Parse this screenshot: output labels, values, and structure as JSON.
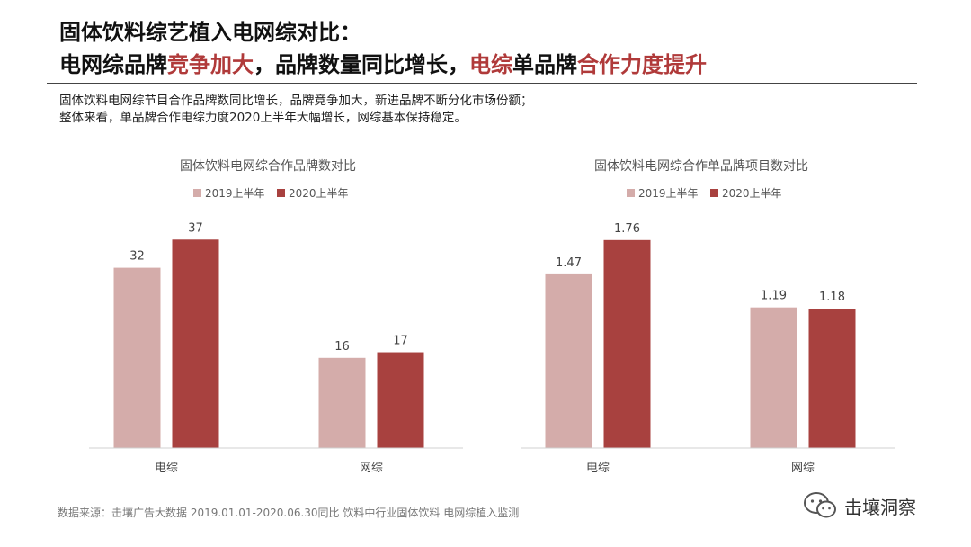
{
  "header": {
    "title_line1": "固体饮料综艺植入电网综对比：",
    "title_line2": [
      {
        "text": "电网综品牌",
        "hl": false
      },
      {
        "text": "竞争加大",
        "hl": true
      },
      {
        "text": "，品牌数量同比增长，",
        "hl": false
      },
      {
        "text": "电综",
        "hl": true
      },
      {
        "text": "单品牌",
        "hl": false
      },
      {
        "text": "合作力度提升",
        "hl": true
      }
    ],
    "desc_line1": "固体饮料电网综节目合作品牌数同比增长，品牌竞争加大，新进品牌不断分化市场份额；",
    "desc_line2": "整体来看，单品牌合作电综力度2020上半年大幅增长，网综基本保持稳定。"
  },
  "colors": {
    "series_2019": "#d4acaa",
    "series_2020": "#a8413f",
    "highlight": "#b03a3a"
  },
  "chart_data": [
    {
      "type": "bar",
      "title": "固体饮料电网综合作品牌数对比",
      "categories": [
        "电综",
        "网综"
      ],
      "series": [
        {
          "name": "2019上半年",
          "values": [
            32,
            16
          ],
          "labels": [
            "32",
            "16"
          ]
        },
        {
          "name": "2020上半年",
          "values": [
            37,
            17
          ],
          "labels": [
            "37",
            "17"
          ]
        }
      ],
      "ylim": [
        0,
        49.5
      ],
      "grid": false,
      "legend": "top-center"
    },
    {
      "type": "bar",
      "title": "固体饮料电网综合作单品牌项目数对比",
      "categories": [
        "电综",
        "网综"
      ],
      "series": [
        {
          "name": "2019上半年",
          "values": [
            1.47,
            1.19
          ],
          "labels": [
            "1.47",
            "1.19"
          ]
        },
        {
          "name": "2020上半年",
          "values": [
            1.76,
            1.18
          ],
          "labels": [
            "1.76",
            "1.18"
          ]
        }
      ],
      "ylim": [
        0,
        2.36
      ],
      "grid": false,
      "legend": "top-center"
    }
  ],
  "footer": {
    "source": "数据来源：击壤广告大数据 2019.01.01-2020.06.30同比 饮料中行业固体饮料 电网综植入监测",
    "brand_name": "击壤洞察",
    "brand_icon": "wechat-icon"
  }
}
